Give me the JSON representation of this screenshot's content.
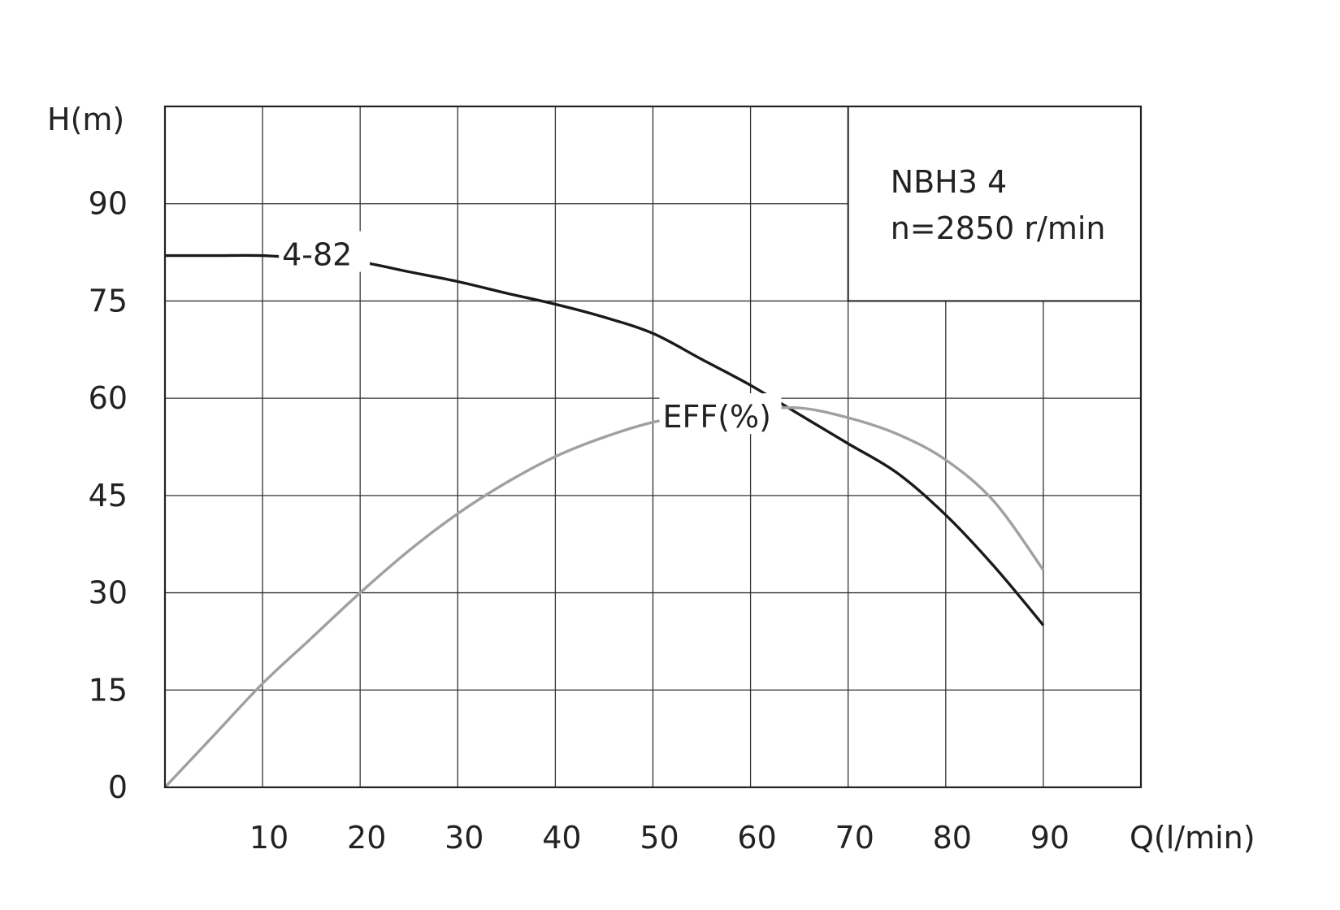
{
  "chart_data": {
    "type": "line",
    "ylabel": "H(m)",
    "xlabel": "Q(l/min)",
    "xlim": [
      0,
      100
    ],
    "ylim": [
      0,
      105
    ],
    "xticks": [
      10,
      20,
      30,
      40,
      50,
      60,
      70,
      80,
      90
    ],
    "yticks": [
      0,
      15,
      30,
      45,
      60,
      75,
      90
    ],
    "grid": true,
    "info_box": {
      "position": "top-right",
      "line1": "NBH3 4",
      "line2": "n=2850 r/min"
    },
    "series": [
      {
        "name": "4-82",
        "color": "#1a1a1a",
        "label_at": [
          12,
          82
        ],
        "x": [
          0,
          5,
          10,
          15,
          20,
          25,
          30,
          35,
          40,
          45,
          50,
          55,
          60,
          65,
          70,
          75,
          80,
          85,
          90
        ],
        "y": [
          82,
          82,
          82,
          81.5,
          81,
          79.5,
          78,
          76.2,
          74.5,
          72.5,
          70,
          66,
          62,
          57.5,
          53,
          48.5,
          42,
          34,
          25
        ]
      },
      {
        "name": "EFF(%)",
        "color": "#a0a0a0",
        "label_at": [
          51,
          57
        ],
        "x": [
          0,
          5,
          10,
          15,
          20,
          25,
          30,
          35,
          40,
          45,
          50,
          55,
          60,
          65,
          70,
          75,
          80,
          85,
          90
        ],
        "y": [
          0,
          8,
          16,
          23,
          30,
          36.5,
          42.2,
          47,
          51,
          54,
          56.3,
          57.5,
          58.2,
          58.5,
          57,
          54.5,
          50.5,
          44,
          33.5
        ]
      }
    ]
  }
}
